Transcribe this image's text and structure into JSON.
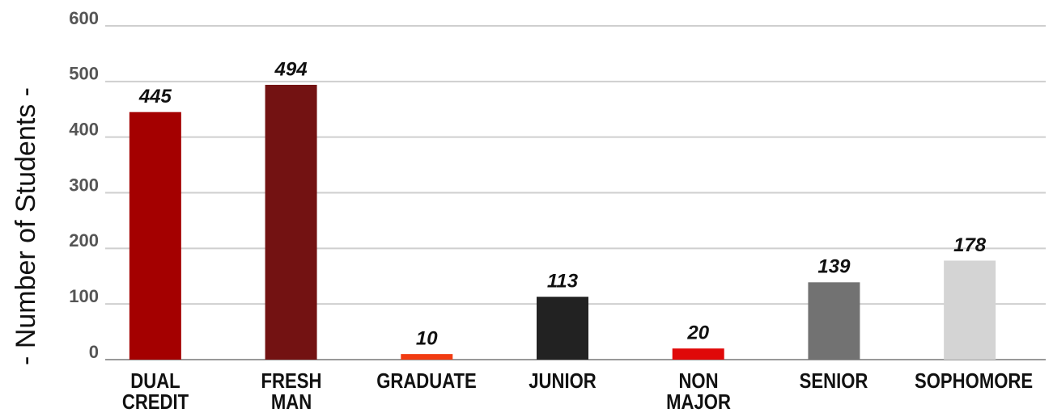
{
  "chart_data": {
    "type": "bar",
    "y_label": "- Number of Students -",
    "categories": [
      "DUAL\nCREDIT",
      "FRESH\nMAN",
      "GRADUATE",
      "JUNIOR",
      "NON\nMAJOR",
      "SENIOR",
      "SOPHOMORE"
    ],
    "values": [
      445,
      494,
      10,
      113,
      20,
      139,
      178
    ],
    "colors": [
      "#a40000",
      "#731212",
      "#f23c12",
      "#222222",
      "#e00909",
      "#727272",
      "#d4d4d4"
    ],
    "ylim": [
      0,
      600
    ],
    "yticks": [
      0,
      100,
      200,
      300,
      400,
      500,
      600
    ],
    "grid": true
  }
}
